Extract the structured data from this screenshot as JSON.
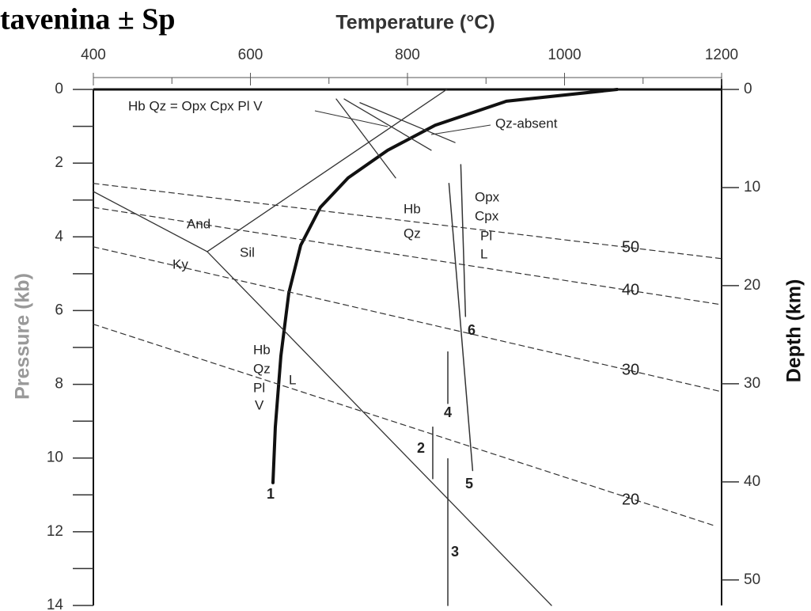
{
  "chart_data": {
    "type": "line",
    "title": "tavenina ± Sp",
    "x_label": "Temperature (°C)",
    "y_label": "Pressure (kb)",
    "y2_label": "Depth (km)",
    "xlim": [
      400,
      1200
    ],
    "xticks": [
      400,
      600,
      800,
      1000,
      1200
    ],
    "xminorticks": [
      500,
      700,
      900,
      1100
    ],
    "ylim": [
      0,
      14
    ],
    "yticks": [
      0,
      2,
      4,
      6,
      8,
      10,
      12,
      14
    ],
    "yminorticks": [
      1,
      3,
      5,
      7,
      9,
      11,
      13
    ],
    "y2lim": [
      0,
      52.6
    ],
    "y2ticks": [
      0,
      10,
      20,
      30,
      40,
      50
    ],
    "series": [
      {
        "name": "1",
        "color": "#111",
        "width": 4,
        "x": [
          628.7,
          631.7,
          638.8,
          648.9,
          664,
          689,
          724.4,
          774.8,
          835.3,
          926,
          1067
        ],
        "values": [
          10.67,
          9.16,
          7.23,
          5.52,
          4.23,
          3.2,
          2.4,
          1.65,
          0.97,
          0.32,
          0
        ]
      },
      {
        "color": "#333",
        "width": 1.3,
        "x": [
          400,
          545
        ],
        "values": [
          2.77,
          4.4
        ]
      },
      {
        "color": "#333",
        "width": 1.3,
        "x": [
          545,
          983.4
        ],
        "values": [
          4.4,
          14
        ]
      },
      {
        "color": "#333",
        "width": 1.3,
        "x": [
          545,
          850
        ],
        "values": [
          4.4,
          0
        ]
      },
      {
        "name": "50",
        "color": "#333",
        "width": 1.2,
        "dashed": true,
        "x": [
          400,
          1200
        ],
        "values": [
          2.55,
          4.59
        ]
      },
      {
        "name": "40",
        "color": "#333",
        "width": 1.2,
        "dashed": true,
        "x": [
          400,
          1200
        ],
        "values": [
          3.2,
          5.84
        ]
      },
      {
        "name": "30",
        "color": "#333",
        "width": 1.2,
        "dashed": true,
        "x": [
          400,
          1200
        ],
        "values": [
          4.27,
          8.2
        ]
      },
      {
        "name": "20",
        "color": "#333",
        "width": 1.2,
        "dashed": true,
        "x": [
          400,
          1193
        ],
        "values": [
          6.37,
          11.85
        ]
      },
      {
        "name": "5",
        "color": "#333",
        "width": 1.5,
        "x": [
          852.8,
          883
        ],
        "values": [
          2.55,
          10.34
        ]
      },
      {
        "name": "6",
        "color": "#333",
        "width": 1.5,
        "x": [
          867.9,
          873.9
        ],
        "values": [
          2.04,
          6.16
        ]
      },
      {
        "name": "4",
        "color": "#333",
        "width": 1.5,
        "x": [
          851.4,
          851.4
        ],
        "values": [
          7.12,
          8.52
        ]
      },
      {
        "name": "2",
        "color": "#333",
        "width": 1.5,
        "x": [
          832.2,
          832.2
        ],
        "values": [
          9.16,
          10.56
        ]
      },
      {
        "name": "3",
        "color": "#333",
        "width": 1.5,
        "x": [
          851.4,
          851.4
        ],
        "values": [
          10.02,
          14
        ]
      },
      {
        "color": "#333",
        "width": 1.3,
        "x": [
          709.3,
          784.9
        ],
        "values": [
          0.26,
          2.4
        ]
      },
      {
        "color": "#333",
        "width": 1.3,
        "x": [
          719.4,
          830.2
        ],
        "values": [
          0.26,
          1.65
        ]
      },
      {
        "color": "#333",
        "width": 1.3,
        "x": [
          739.5,
          860.5
        ],
        "values": [
          0.36,
          1.44
        ]
      }
    ],
    "annotations": [
      "Hb Qz = Opx Cpx Pl V",
      "Qz-absent",
      "And",
      "Sil",
      "Ky",
      "Hb",
      "Qz",
      "Opx",
      "Cpx",
      "Pl",
      "L",
      "Hb",
      "Qz",
      "Pl",
      "L",
      "V"
    ]
  }
}
